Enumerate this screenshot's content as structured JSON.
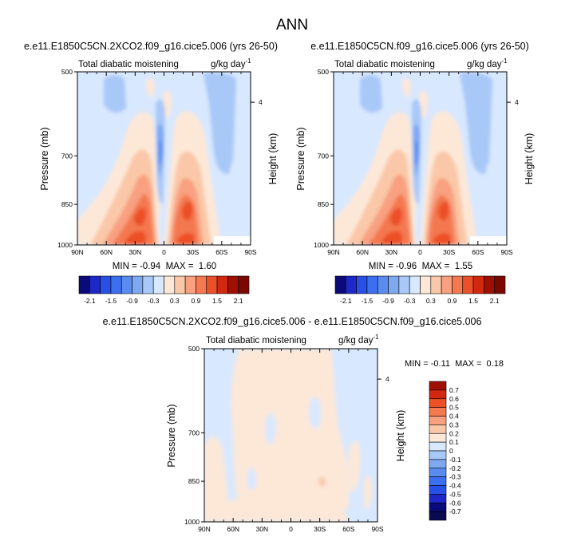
{
  "figure": {
    "title": "ANN"
  },
  "chart_data": [
    {
      "type": "heatmap",
      "title": "e.e11.E1850C5CN.2XCO2.f09_g16.cice5.006 (yrs 26-50)",
      "variable": "Total diabatic moistening",
      "units": "g/kg day",
      "units_exp": "-1",
      "xlabel": "",
      "ylabel": "Pressure (mb)",
      "y2label": "Height (km)",
      "x_ticks": [
        "90N",
        "60N",
        "30N",
        "0",
        "30S",
        "60S",
        "90S"
      ],
      "y_ticks": [
        "500",
        "700",
        "850",
        "1000"
      ],
      "y_tick_values": [
        500,
        700,
        850,
        1000
      ],
      "y2_ticks": [
        "4"
      ],
      "ylim": [
        500,
        1000
      ],
      "xlim": [
        90,
        -90
      ],
      "stats_text": "MIN = -0.94  MAX =  1.60",
      "min": -0.94,
      "max": 1.6,
      "colorbar": {
        "orientation": "horizontal",
        "levels": [
          -2.1,
          -1.8,
          -1.5,
          -1.2,
          -0.9,
          -0.6,
          -0.3,
          0,
          0.3,
          0.6,
          0.9,
          1.2,
          1.5,
          1.8,
          2.1
        ],
        "labels": [
          "-2.1",
          "-1.5",
          "-0.9",
          "-0.3",
          "0.3",
          "0.9",
          "1.5",
          "2.1"
        ],
        "colors": [
          "#0a0a78",
          "#1e28c8",
          "#2850e6",
          "#3c6ef0",
          "#5a8cf0",
          "#7ea8f0",
          "#a8c8f8",
          "#d8e8ff",
          "#fde8d8",
          "#fac8a8",
          "#f8a080",
          "#f47850",
          "#ec5028",
          "#d22810",
          "#a01000",
          "#7a0800"
        ]
      }
    },
    {
      "type": "heatmap",
      "title": "e.e11.E1850C5CN.f09_g16.cice5.006 (yrs 26-50)",
      "variable": "Total diabatic moistening",
      "units": "g/kg day",
      "units_exp": "-1",
      "xlabel": "",
      "ylabel": "Pressure (mb)",
      "y2label": "Height (km)",
      "x_ticks": [
        "90N",
        "60N",
        "30N",
        "0",
        "30S",
        "60S",
        "90S"
      ],
      "y_ticks": [
        "500",
        "700",
        "850",
        "1000"
      ],
      "y_tick_values": [
        500,
        700,
        850,
        1000
      ],
      "y2_ticks": [
        "4"
      ],
      "ylim": [
        500,
        1000
      ],
      "xlim": [
        90,
        -90
      ],
      "stats_text": "MIN = -0.96  MAX =  1.55",
      "min": -0.96,
      "max": 1.55,
      "colorbar": {
        "orientation": "horizontal",
        "levels": [
          -2.1,
          -1.8,
          -1.5,
          -1.2,
          -0.9,
          -0.6,
          -0.3,
          0,
          0.3,
          0.6,
          0.9,
          1.2,
          1.5,
          1.8,
          2.1
        ],
        "labels": [
          "-2.1",
          "-1.5",
          "-0.9",
          "-0.3",
          "0.3",
          "0.9",
          "1.5",
          "2.1"
        ],
        "colors": [
          "#0a0a78",
          "#1e28c8",
          "#2850e6",
          "#3c6ef0",
          "#5a8cf0",
          "#7ea8f0",
          "#a8c8f8",
          "#d8e8ff",
          "#fde8d8",
          "#fac8a8",
          "#f8a080",
          "#f47850",
          "#ec5028",
          "#d22810",
          "#a01000",
          "#7a0800"
        ]
      }
    },
    {
      "type": "heatmap",
      "title": "e.e11.E1850C5CN.2XCO2.f09_g16.cice5.006 - e.e11.E1850C5CN.f09_g16.cice5.006",
      "variable": "Total diabatic moistening",
      "units": "g/kg day",
      "units_exp": "-1",
      "xlabel": "",
      "ylabel": "Pressure (mb)",
      "y2label": "Height (km)",
      "x_ticks": [
        "90N",
        "60N",
        "30N",
        "0",
        "30S",
        "60S",
        "90S"
      ],
      "y_ticks": [
        "500",
        "700",
        "850",
        "1000"
      ],
      "y_tick_values": [
        500,
        700,
        850,
        1000
      ],
      "y2_ticks": [
        "4"
      ],
      "ylim": [
        500,
        1000
      ],
      "xlim": [
        90,
        -90
      ],
      "stats_text": "MIN = -0.11  MAX =  0.18",
      "min": -0.11,
      "max": 0.18,
      "colorbar": {
        "orientation": "vertical",
        "levels": [
          0.7,
          0.6,
          0.5,
          0.4,
          0.3,
          0.2,
          0.1,
          0,
          -0.1,
          -0.2,
          -0.3,
          -0.4,
          -0.5,
          -0.6,
          -0.7
        ],
        "labels": [
          "0.7",
          "0.6",
          "0.5",
          "0.4",
          "0.3",
          "0.2",
          "0.1",
          "0",
          "-0.1",
          "-0.2",
          "-0.3",
          "-0.4",
          "-0.5",
          "-0.6",
          "-0.7"
        ],
        "colors": [
          "#a01000",
          "#d22810",
          "#ec5028",
          "#f47850",
          "#f8a080",
          "#fac8a8",
          "#fde8d8",
          "#d8e8ff",
          "#a8c8f8",
          "#7ea8f0",
          "#5a8cf0",
          "#3c6ef0",
          "#2850e6",
          "#1e28c8",
          "#0a0a78",
          "#0a0a50"
        ]
      }
    }
  ]
}
